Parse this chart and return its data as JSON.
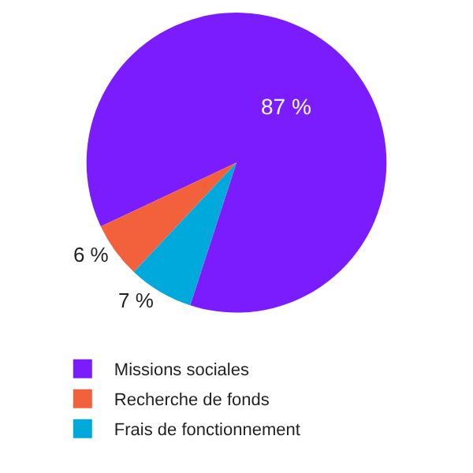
{
  "chart_data": {
    "type": "pie",
    "categories": [
      "Missions sociales",
      "Recherche de fonds",
      "Frais de fonctionnement"
    ],
    "values": [
      87,
      6,
      7
    ],
    "colors": [
      "#7b1cff",
      "#f2603c",
      "#00a9dc"
    ],
    "value_labels": [
      "87 %",
      "6 %",
      "7 %"
    ],
    "legend": "bottom"
  }
}
